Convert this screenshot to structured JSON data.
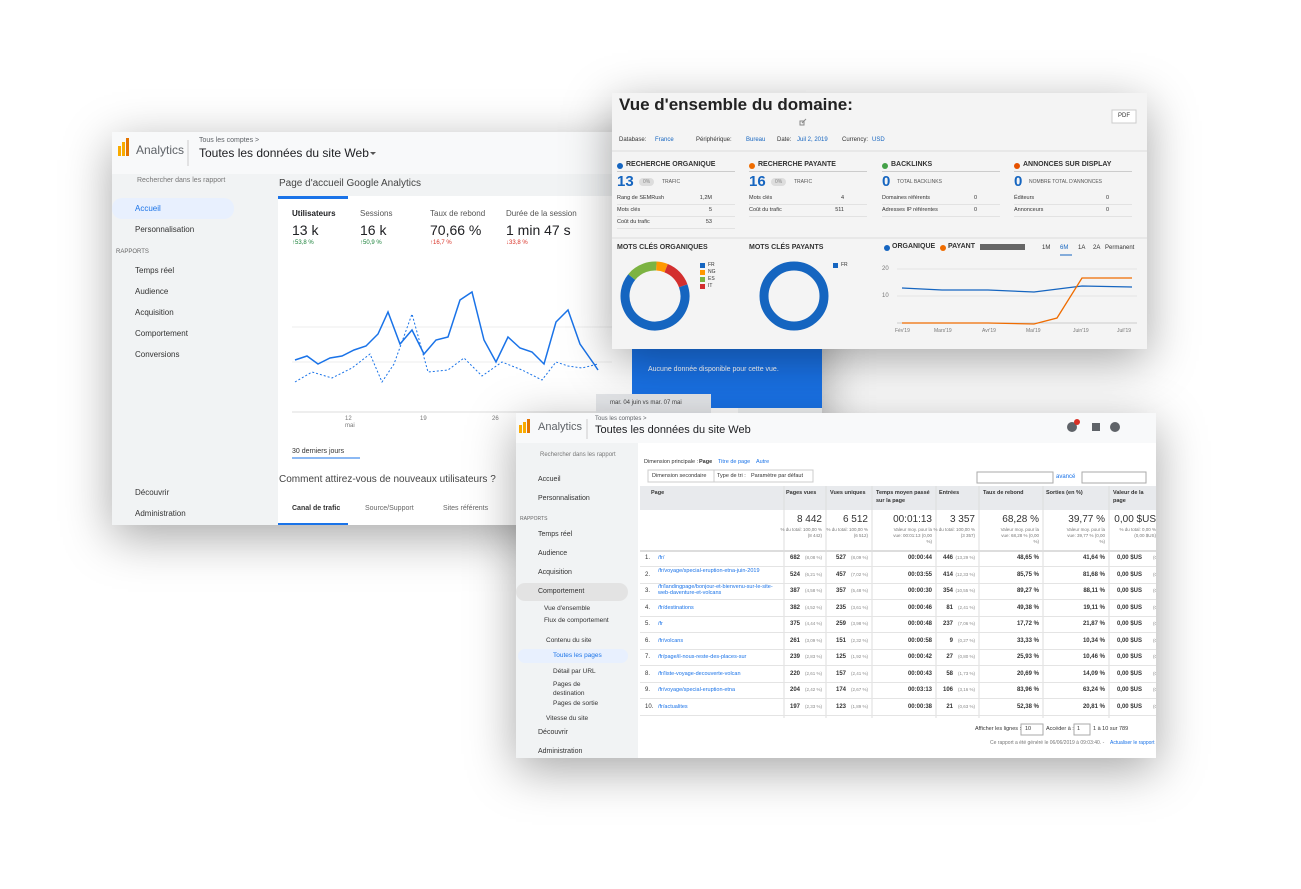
{
  "ga_home": {
    "brand": "Analytics",
    "breadcrumb": "Tous les comptes >",
    "property": "Toutes les données du site Web",
    "search": "Rechercher dans les rapport",
    "nav": [
      "Accueil",
      "Personnalisation"
    ],
    "section": "RAPPORTS",
    "reports": [
      "Temps réel",
      "Audience",
      "Acquisition",
      "Comportement",
      "Conversions"
    ],
    "bottom_nav": [
      "Découvrir",
      "Administration"
    ],
    "page_title": "Page d'accueil Google Analytics",
    "metrics": [
      {
        "label": "Utilisateurs",
        "value": "13 k",
        "change": "↑53,8 %"
      },
      {
        "label": "Sessions",
        "value": "16 k",
        "change": "↑50,9 %"
      },
      {
        "label": "Taux de rebond",
        "value": "70,66 %",
        "change": "↑16,7 %"
      },
      {
        "label": "Durée de la session",
        "value": "1 min 47 s",
        "change": "↓33,8 %"
      }
    ],
    "x_labels": [
      {
        "day": "12",
        "month": "mai"
      },
      {
        "day": "19"
      },
      {
        "day": "26"
      }
    ],
    "date_range": "30 derniers jours",
    "question": "Comment attirez-vous de nouveaux utilisateurs ?",
    "tabs": [
      "Canal de trafic",
      "Source/Support",
      "Sites référents"
    ],
    "no_data": "Aucune donnée disponible pour cette vue.",
    "compare": "mar. 04 juin vs mar. 07 mai"
  },
  "semrush": {
    "title": "Vue d'ensemble du domaine:",
    "pdf": "PDF",
    "filters": [
      {
        "label": "Database:",
        "value": "France"
      },
      {
        "label": "Périphérique:",
        "value": "Bureau"
      },
      {
        "label": "Date:",
        "value": "Juil 2, 2019"
      },
      {
        "label": "Currency:",
        "value": "USD"
      }
    ],
    "cards": [
      {
        "title": "RECHERCHE ORGANIQUE",
        "color": "#1565c0",
        "value": "13",
        "badge": "0%",
        "unit": "TRAFIC",
        "rows": [
          [
            "Rang de SEMRush",
            "1,2M"
          ],
          [
            "Mots clés",
            "5"
          ],
          [
            "Coût du trafic",
            "53"
          ]
        ]
      },
      {
        "title": "RECHERCHE PAYANTE",
        "color": "#ef6c00",
        "value": "16",
        "badge": "0%",
        "unit": "TRAFIC",
        "rows": [
          [
            "Mots clés",
            "4"
          ],
          [
            "Coût du trafic",
            "511"
          ]
        ]
      },
      {
        "title": "BACKLINKS",
        "color": "#43a047",
        "value": "0",
        "unit": "TOTAL BACKLINKS",
        "rows": [
          [
            "Domaines référents",
            "0"
          ],
          [
            "Adresses IP référentes",
            "0"
          ]
        ]
      },
      {
        "title": "ANNONCES SUR DISPLAY",
        "color": "#e65100",
        "value": "0",
        "unit": "NOMBRE TOTAL D'ANNONCES",
        "rows": [
          [
            "Éditeurs",
            "0"
          ],
          [
            "Annonceurs",
            "0"
          ]
        ]
      }
    ],
    "organic_kw": {
      "title": "MOTS CLÉS ORGANIQUES",
      "legend": [
        {
          "name": "FR",
          "color": "#1565c0"
        },
        {
          "name": "NG",
          "color": "#ff9800"
        },
        {
          "name": "ES",
          "color": "#7cb342"
        },
        {
          "name": "IT",
          "color": "#d32f2f"
        }
      ]
    },
    "paid_kw": {
      "title": "MOTS CLÉS PAYANTS",
      "legend": [
        {
          "name": "FR",
          "color": "#1565c0"
        }
      ]
    },
    "trend": {
      "legend": [
        {
          "name": "ORGANIQUE",
          "color": "#1565c0"
        },
        {
          "name": "PAYANT",
          "color": "#ef6c00"
        }
      ],
      "ranges": [
        "1M",
        "6M",
        "1A",
        "2A",
        "Permanent"
      ],
      "yticks": [
        20,
        10
      ],
      "x_labels": [
        "Fév'19",
        "Mars'19",
        "Avr'19",
        "Mai'19",
        "Juin'19",
        "Juil'19"
      ]
    }
  },
  "ga_table": {
    "brand": "Analytics",
    "breadcrumb": "Tous les comptes >",
    "property": "Toutes les données du site Web",
    "search": "Rechercher dans les rapport",
    "nav": [
      "Accueil",
      "Personnalisation"
    ],
    "section": "RAPPORTS",
    "reports": [
      "Temps réel",
      "Audience",
      "Acquisition",
      "Comportement"
    ],
    "behaviour": [
      "Vue d'ensemble",
      "Flux de comportement"
    ],
    "content": "Contenu du site",
    "content_items": [
      "Toutes les pages",
      "Détail par URL",
      "Pages de destination",
      "Pages de sortie"
    ],
    "speed": "Vitesse du site",
    "bottom_nav": [
      "Découvrir",
      "Administration"
    ],
    "primary_label": "Dimension principale :",
    "primary": [
      "Page",
      "Titre de page",
      "Autre"
    ],
    "secondary": "Dimension secondaire",
    "sort_label": "Type de tri :",
    "sort": "Paramètre par défaut",
    "advanced": "avancé",
    "columns": [
      "Page",
      "Pages vues",
      "Vues uniques",
      "Temps moyen passé sur la page",
      "Entrées",
      "Taux de rebond",
      "Sorties (en %)",
      "Valeur de la page"
    ],
    "totals": [
      {
        "value": "8 442",
        "note": "% du total: 100,00 % (8 442)"
      },
      {
        "value": "6 512",
        "note": "% du total: 100,00 % (6 512)"
      },
      {
        "value": "00:01:13",
        "note": "Valeur moy. pour la vue: 00:01:13 (0,00 %)"
      },
      {
        "value": "3 357",
        "note": "% du total: 100,00 % (3 357)"
      },
      {
        "value": "68,28 %",
        "note": "Valeur moy. pour la vue: 68,28 % (0,00 %)"
      },
      {
        "value": "39,77 %",
        "note": "Valeur moy. pour la vue: 39,77 % (0,00 %)"
      },
      {
        "value": "0,00 $US",
        "note": "% du total: 0,00 % (0,00 $US)"
      }
    ],
    "rows": [
      [
        "1.",
        "/fr/",
        "682",
        "(8,08 %)",
        "527",
        "(8,09 %)",
        "00:00:44",
        "446",
        "(13,29 %)",
        "48,65 %",
        "41,64 %",
        "0,00 $US",
        "(0,00 %)"
      ],
      [
        "2.",
        "/fr/voyage/special-eruption-etna-juin-2019",
        "524",
        "(6,21 %)",
        "457",
        "(7,02 %)",
        "00:03:55",
        "414",
        "(12,33 %)",
        "85,75 %",
        "81,68 %",
        "0,00 $US",
        "(0,00 %)"
      ],
      [
        "3.",
        "/fr/landingpage/bonjour-et-bienvenu-sur-le-site-web-daventure-et-volcans",
        "387",
        "(4,58 %)",
        "357",
        "(5,48 %)",
        "00:00:30",
        "354",
        "(10,55 %)",
        "89,27 %",
        "88,11 %",
        "0,00 $US",
        "(0,00 %)"
      ],
      [
        "4.",
        "/fr/destinations",
        "382",
        "(4,52 %)",
        "235",
        "(3,61 %)",
        "00:00:46",
        "81",
        "(2,41 %)",
        "49,38 %",
        "19,11 %",
        "0,00 $US",
        "(0,00 %)"
      ],
      [
        "5.",
        "/fr",
        "375",
        "(4,44 %)",
        "259",
        "(3,98 %)",
        "00:00:48",
        "237",
        "(7,06 %)",
        "17,72 %",
        "21,87 %",
        "0,00 $US",
        "(0,00 %)"
      ],
      [
        "6.",
        "/fr/volcans",
        "261",
        "(3,09 %)",
        "151",
        "(2,32 %)",
        "00:00:58",
        "9",
        "(0,27 %)",
        "33,33 %",
        "10,34 %",
        "0,00 $US",
        "(0,00 %)"
      ],
      [
        "7.",
        "/fr/page/il-nous-reste-des-places-sur",
        "239",
        "(2,83 %)",
        "125",
        "(1,92 %)",
        "00:00:42",
        "27",
        "(0,80 %)",
        "25,93 %",
        "10,46 %",
        "0,00 $US",
        "(0,00 %)"
      ],
      [
        "8.",
        "/fr/liste-voyage-decouverte-volcan",
        "220",
        "(2,61 %)",
        "157",
        "(2,41 %)",
        "00:00:43",
        "58",
        "(1,73 %)",
        "20,69 %",
        "14,09 %",
        "0,00 $US",
        "(0,00 %)"
      ],
      [
        "9.",
        "/fr/voyage/special-eruption-etna",
        "204",
        "(2,42 %)",
        "174",
        "(2,67 %)",
        "00:03:13",
        "106",
        "(3,16 %)",
        "83,96 %",
        "63,24 %",
        "0,00 $US",
        "(0,00 %)"
      ],
      [
        "10.",
        "/fr/actualites",
        "197",
        "(2,33 %)",
        "123",
        "(1,89 %)",
        "00:00:38",
        "21",
        "(0,63 %)",
        "52,38 %",
        "20,81 %",
        "0,00 $US",
        "(0,00 %)"
      ]
    ],
    "show_rows": "Afficher les lignes :",
    "rows_count": "10",
    "goto": "Accéder à :",
    "page": "1",
    "range": "1 à 10 sur 789",
    "generated": "Ce rapport a été généré le 06/06/2019 à 09:03:40. -",
    "refresh": "Actualiser le rapport"
  }
}
